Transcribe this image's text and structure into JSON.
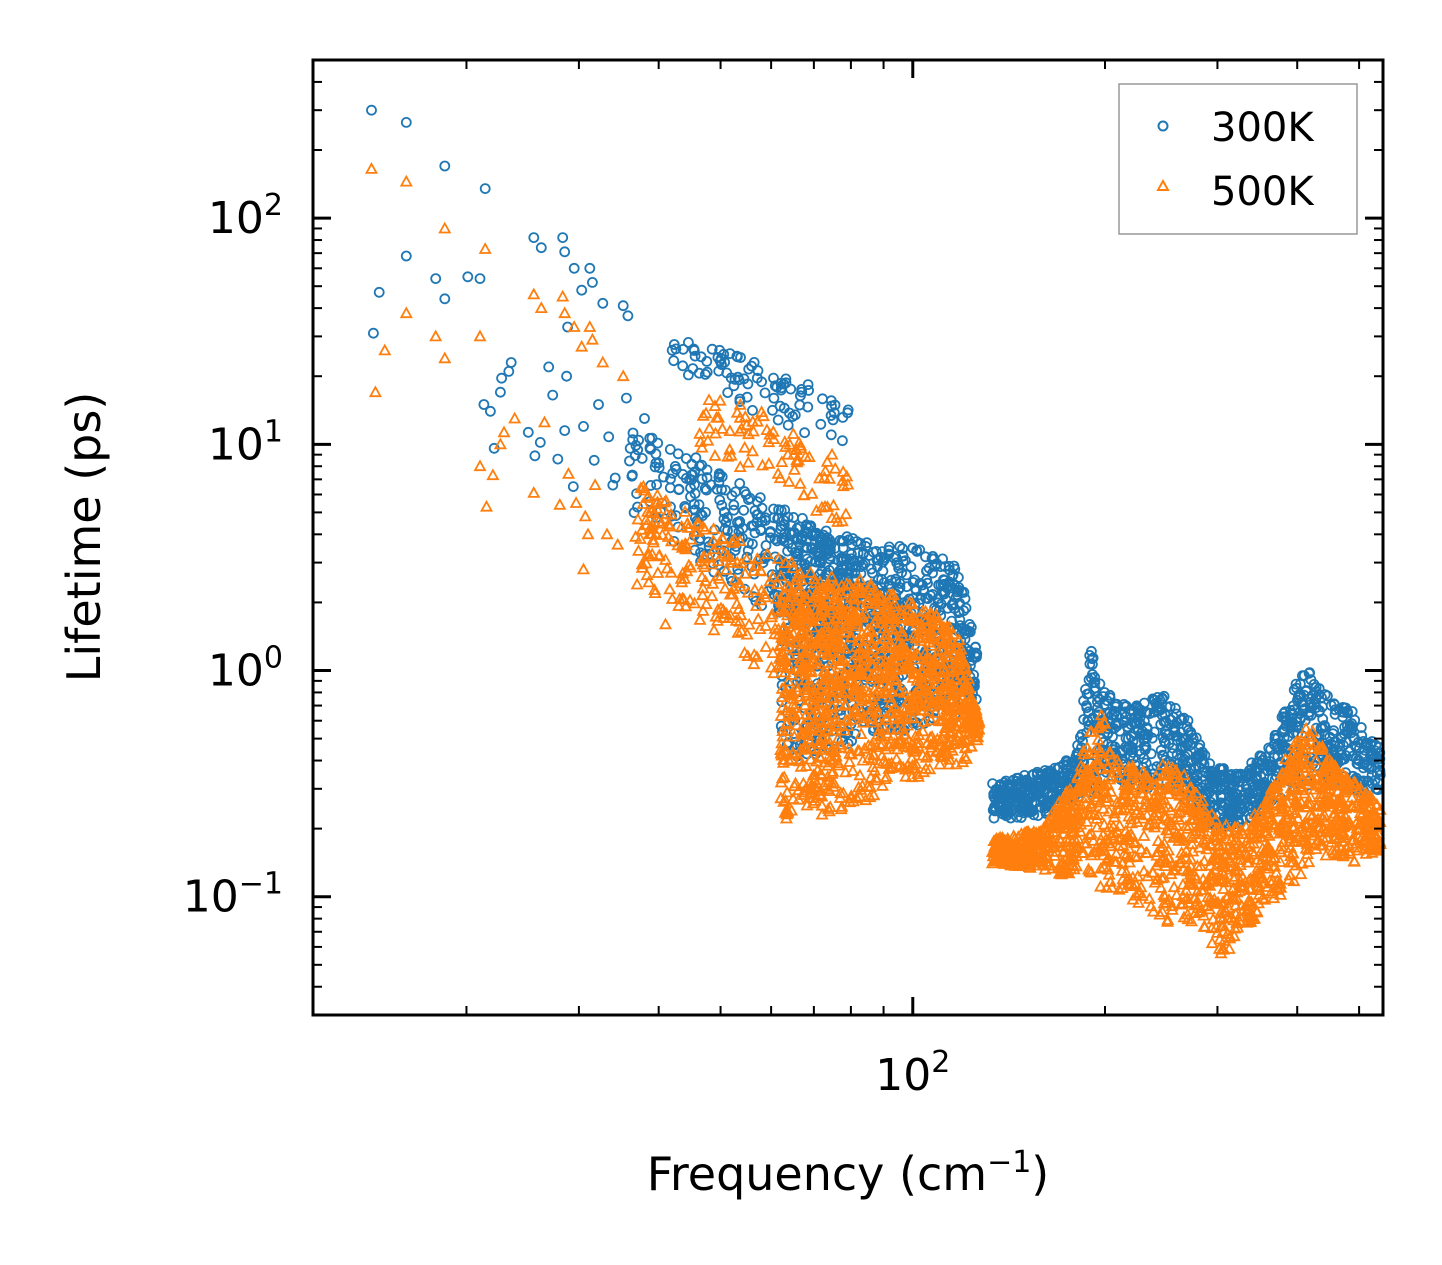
{
  "chart_data": {
    "type": "scatter",
    "title": "",
    "xlabel": "Frequency (cm",
    "xlabel_sup": "−1",
    "xlabel_end": ")",
    "ylabel": "Lifetime (ps)",
    "xscale": "log",
    "yscale": "log",
    "xlim": [
      11.5,
      545
    ],
    "ylim": [
      0.03,
      500
    ],
    "x_major_ticks": [
      {
        "value": 100,
        "base": "10",
        "exp": "2"
      }
    ],
    "y_major_ticks": [
      {
        "value": 0.1,
        "base": "10",
        "exp": "−1"
      },
      {
        "value": 1,
        "base": "10",
        "exp": "0"
      },
      {
        "value": 10,
        "base": "10",
        "exp": "1"
      },
      {
        "value": 100,
        "base": "10",
        "exp": "2"
      }
    ],
    "legend_position": "top-right",
    "series": [
      {
        "name": "300K",
        "color": "#1f77b4",
        "marker": "circle-open",
        "points": [
          [
            14.2,
            300
          ],
          [
            16.1,
            265
          ],
          [
            18.5,
            170
          ],
          [
            20.1,
            55
          ],
          [
            21.4,
            135
          ],
          [
            14.3,
            31
          ],
          [
            14.6,
            47
          ],
          [
            16.1,
            68
          ],
          [
            17.9,
            54
          ],
          [
            18.5,
            44
          ],
          [
            21.0,
            54
          ],
          [
            21.3,
            15
          ],
          [
            21.8,
            14
          ],
          [
            22.1,
            9.6
          ],
          [
            22.6,
            17
          ],
          [
            22.7,
            19.6
          ],
          [
            23.3,
            21
          ],
          [
            23.5,
            23
          ],
          [
            25.5,
            82
          ],
          [
            26.2,
            74
          ],
          [
            28.3,
            82
          ],
          [
            28.5,
            71
          ],
          [
            29.5,
            60
          ],
          [
            30.3,
            48
          ],
          [
            31.2,
            60
          ],
          [
            31.5,
            52
          ],
          [
            32.7,
            42
          ],
          [
            35.2,
            41
          ],
          [
            35.8,
            37
          ],
          [
            26.1,
            10.2
          ],
          [
            26.9,
            22
          ],
          [
            27.3,
            16.5
          ],
          [
            28.7,
            20
          ],
          [
            28.5,
            11.5
          ],
          [
            29.4,
            6.5
          ],
          [
            30.5,
            12
          ],
          [
            31.7,
            8.5
          ],
          [
            32.2,
            15
          ],
          [
            33.4,
            10.8
          ],
          [
            34.2,
            7.1
          ],
          [
            35.6,
            16
          ],
          [
            36.1,
            9.6
          ],
          [
            38.0,
            13
          ],
          [
            25.0,
            11.3
          ],
          [
            25.6,
            8.9
          ],
          [
            27.8,
            8.6
          ],
          [
            28.8,
            33
          ],
          [
            33.9,
            6.6
          ]
        ]
      },
      {
        "name": "500K",
        "color": "#ff7f0e",
        "marker": "triangle-open",
        "points": [
          [
            14.2,
            165
          ],
          [
            16.1,
            145
          ],
          [
            18.5,
            90
          ],
          [
            21.4,
            73
          ],
          [
            14.4,
            17
          ],
          [
            14.9,
            26
          ],
          [
            16.1,
            38
          ],
          [
            17.9,
            30
          ],
          [
            18.5,
            24
          ],
          [
            21.0,
            30
          ],
          [
            21.0,
            8
          ],
          [
            21.5,
            5.3
          ],
          [
            22.0,
            7.3
          ],
          [
            22.6,
            10
          ],
          [
            22.9,
            11.3
          ],
          [
            23.8,
            13
          ],
          [
            25.5,
            46
          ],
          [
            26.2,
            40
          ],
          [
            28.3,
            45
          ],
          [
            28.5,
            38
          ],
          [
            29.5,
            33
          ],
          [
            30.3,
            27
          ],
          [
            31.2,
            33
          ],
          [
            31.5,
            29
          ],
          [
            32.7,
            23
          ],
          [
            35.2,
            20
          ],
          [
            25.5,
            6.1
          ],
          [
            26.5,
            12.5
          ],
          [
            28.0,
            5.4
          ],
          [
            28.9,
            7.4
          ],
          [
            29.7,
            5.5
          ],
          [
            30.7,
            4.8
          ],
          [
            31.8,
            6.6
          ],
          [
            33.2,
            4.0
          ],
          [
            34.5,
            3.6
          ],
          [
            36.8,
            3.9
          ],
          [
            37.0,
            2.4
          ],
          [
            38.5,
            3.2
          ],
          [
            39.5,
            2.2
          ],
          [
            41.0,
            1.6
          ],
          [
            30.5,
            2.8
          ],
          [
            31.0,
            4.0
          ]
        ]
      }
    ],
    "clusters": [
      {
        "series": "300K",
        "fmin": 36,
        "fmax": 82,
        "upper": [
          [
            36,
            14
          ],
          [
            45,
            9
          ],
          [
            55,
            6.5
          ],
          [
            65,
            5
          ],
          [
            75,
            4
          ],
          [
            82,
            3.5
          ]
        ],
        "lower": [
          [
            36,
            5
          ],
          [
            45,
            3.2
          ],
          [
            55,
            2.1
          ],
          [
            65,
            1.6
          ],
          [
            75,
            1.3
          ],
          [
            82,
            1.1
          ]
        ],
        "n": 320
      },
      {
        "series": "300K",
        "fmin": 42,
        "fmax": 80,
        "upper": [
          [
            42,
            32
          ],
          [
            50,
            26
          ],
          [
            60,
            22
          ],
          [
            70,
            18
          ],
          [
            80,
            14
          ]
        ],
        "lower": [
          [
            42,
            20
          ],
          [
            50,
            16
          ],
          [
            60,
            13
          ],
          [
            70,
            10.5
          ],
          [
            80,
            9
          ]
        ],
        "n": 90
      },
      {
        "series": "300K",
        "fmin": 62,
        "fmax": 126,
        "upper": [
          [
            62,
            5
          ],
          [
            72,
            4.2
          ],
          [
            82,
            3.8
          ],
          [
            92,
            3.6
          ],
          [
            100,
            3.5
          ],
          [
            110,
            3.2
          ],
          [
            118,
            2.9
          ],
          [
            126,
            1.2
          ]
        ],
        "lower": [
          [
            62,
            0.37
          ],
          [
            66,
            0.38
          ],
          [
            72,
            0.42
          ],
          [
            80,
            0.48
          ],
          [
            90,
            0.52
          ],
          [
            100,
            0.55
          ],
          [
            110,
            0.6
          ],
          [
            120,
            0.62
          ],
          [
            126,
            0.7
          ]
        ],
        "n": 900
      },
      {
        "series": "300K",
        "fmin": 133,
        "fmax": 540,
        "upper": [
          [
            133,
            0.32
          ],
          [
            160,
            0.36
          ],
          [
            180,
            0.42
          ],
          [
            190,
            1.3
          ],
          [
            200,
            0.8
          ],
          [
            220,
            0.7
          ],
          [
            245,
            0.8
          ],
          [
            270,
            0.6
          ],
          [
            290,
            0.4
          ],
          [
            320,
            0.35
          ],
          [
            360,
            0.45
          ],
          [
            380,
            0.65
          ],
          [
            400,
            0.9
          ],
          [
            420,
            1.1
          ],
          [
            440,
            0.8
          ],
          [
            480,
            0.7
          ],
          [
            540,
            0.45
          ]
        ],
        "lower": [
          [
            133,
            0.22
          ],
          [
            160,
            0.22
          ],
          [
            190,
            0.28
          ],
          [
            220,
            0.3
          ],
          [
            260,
            0.28
          ],
          [
            290,
            0.2
          ],
          [
            320,
            0.2
          ],
          [
            360,
            0.25
          ],
          [
            400,
            0.3
          ],
          [
            440,
            0.32
          ],
          [
            500,
            0.28
          ],
          [
            540,
            0.28
          ]
        ],
        "n": 1200
      },
      {
        "series": "500K",
        "fmin": 37,
        "fmax": 82,
        "upper": [
          [
            37,
            7
          ],
          [
            45,
            5
          ],
          [
            55,
            3.8
          ],
          [
            65,
            3
          ],
          [
            75,
            2.6
          ],
          [
            82,
            2.3
          ]
        ],
        "lower": [
          [
            37,
            2.6
          ],
          [
            45,
            1.7
          ],
          [
            55,
            1.1
          ],
          [
            65,
            0.85
          ],
          [
            75,
            0.7
          ],
          [
            82,
            0.6
          ]
        ],
        "n": 320
      },
      {
        "series": "500K",
        "fmin": 45,
        "fmax": 80,
        "upper": [
          [
            45,
            18
          ],
          [
            55,
            15
          ],
          [
            65,
            12
          ],
          [
            75,
            9
          ],
          [
            80,
            7
          ]
        ],
        "lower": [
          [
            45,
            9
          ],
          [
            55,
            7.5
          ],
          [
            65,
            6
          ],
          [
            75,
            4.5
          ],
          [
            80,
            4
          ]
        ],
        "n": 90
      },
      {
        "series": "500K",
        "fmin": 62,
        "fmax": 127,
        "upper": [
          [
            62,
            2.2
          ],
          [
            72,
            2.3
          ],
          [
            82,
            2.6
          ],
          [
            92,
            2.2
          ],
          [
            100,
            2.0
          ],
          [
            110,
            1.8
          ],
          [
            118,
            1.4
          ],
          [
            127,
            0.6
          ]
        ],
        "lower": [
          [
            62,
            0.2
          ],
          [
            66,
            0.21
          ],
          [
            72,
            0.22
          ],
          [
            80,
            0.24
          ],
          [
            90,
            0.3
          ],
          [
            100,
            0.33
          ],
          [
            110,
            0.36
          ],
          [
            120,
            0.38
          ],
          [
            127,
            0.5
          ]
        ],
        "n": 1100
      },
      {
        "series": "500K",
        "fmin": 133,
        "fmax": 540,
        "upper": [
          [
            133,
            0.18
          ],
          [
            160,
            0.2
          ],
          [
            180,
            0.35
          ],
          [
            195,
            0.7
          ],
          [
            210,
            0.4
          ],
          [
            230,
            0.38
          ],
          [
            260,
            0.4
          ],
          [
            280,
            0.3
          ],
          [
            300,
            0.22
          ],
          [
            330,
            0.2
          ],
          [
            360,
            0.28
          ],
          [
            390,
            0.45
          ],
          [
            420,
            0.6
          ],
          [
            440,
            0.45
          ],
          [
            480,
            0.35
          ],
          [
            540,
            0.25
          ]
        ],
        "lower": [
          [
            133,
            0.14
          ],
          [
            160,
            0.13
          ],
          [
            180,
            0.12
          ],
          [
            200,
            0.1
          ],
          [
            230,
            0.09
          ],
          [
            260,
            0.07
          ],
          [
            280,
            0.08
          ],
          [
            300,
            0.055
          ],
          [
            320,
            0.06
          ],
          [
            350,
            0.08
          ],
          [
            380,
            0.1
          ],
          [
            420,
            0.14
          ],
          [
            460,
            0.15
          ],
          [
            500,
            0.14
          ],
          [
            540,
            0.16
          ]
        ],
        "n": 1600
      }
    ]
  }
}
